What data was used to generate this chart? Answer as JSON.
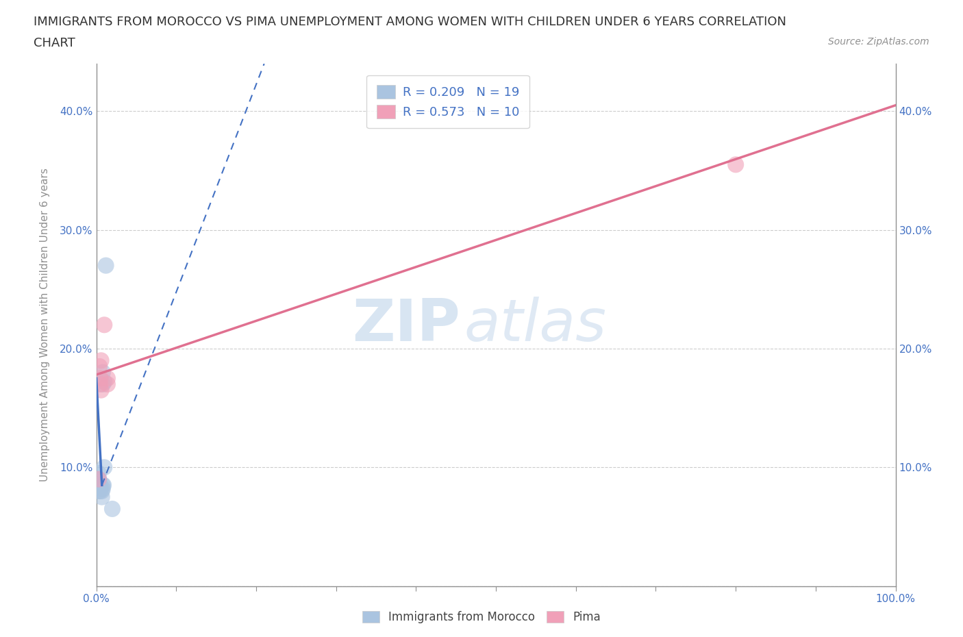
{
  "title_line1": "IMMIGRANTS FROM MOROCCO VS PIMA UNEMPLOYMENT AMONG WOMEN WITH CHILDREN UNDER 6 YEARS CORRELATION",
  "title_line2": "CHART",
  "source": "Source: ZipAtlas.com",
  "ylabel": "Unemployment Among Women with Children Under 6 years",
  "xlim": [
    0,
    1.0
  ],
  "ylim": [
    0,
    0.44
  ],
  "xticks": [
    0.0,
    0.1,
    0.2,
    0.3,
    0.4,
    0.5,
    0.6,
    0.7,
    0.8,
    0.9,
    1.0
  ],
  "yticks": [
    0.0,
    0.1,
    0.2,
    0.3,
    0.4
  ],
  "xtick_labels": [
    "0.0%",
    "",
    "",
    "",
    "",
    "",
    "",
    "",
    "",
    "",
    "100.0%"
  ],
  "ytick_labels": [
    "",
    "10.0%",
    "20.0%",
    "30.0%",
    "40.0%"
  ],
  "blue_scatter_x": [
    0.003,
    0.003,
    0.003,
    0.003,
    0.003,
    0.003,
    0.005,
    0.005,
    0.007,
    0.007,
    0.008,
    0.008,
    0.008,
    0.008,
    0.009,
    0.01,
    0.01,
    0.012,
    0.02
  ],
  "blue_scatter_y": [
    0.08,
    0.085,
    0.085,
    0.09,
    0.09,
    0.095,
    0.08,
    0.085,
    0.075,
    0.08,
    0.082,
    0.085,
    0.17,
    0.18,
    0.085,
    0.1,
    0.172,
    0.27,
    0.065
  ],
  "pink_scatter_x": [
    0.003,
    0.004,
    0.005,
    0.005,
    0.006,
    0.006,
    0.01,
    0.014,
    0.014,
    0.8
  ],
  "pink_scatter_y": [
    0.09,
    0.185,
    0.17,
    0.175,
    0.165,
    0.19,
    0.22,
    0.17,
    0.175,
    0.355
  ],
  "blue_solid_line_x": [
    0.0,
    0.007
  ],
  "blue_solid_line_y": [
    0.175,
    0.085
  ],
  "blue_dashed_line_x": [
    0.007,
    0.21
  ],
  "blue_dashed_line_y": [
    0.085,
    0.44
  ],
  "pink_line_x": [
    0.0,
    1.0
  ],
  "pink_line_y": [
    0.178,
    0.405
  ],
  "blue_color": "#aac4e0",
  "pink_color": "#f0a0b8",
  "blue_line_color": "#4472c4",
  "pink_line_color": "#e07090",
  "legend_r1": "R = 0.209",
  "legend_n1": "N = 19",
  "legend_r2": "R = 0.573",
  "legend_n2": "N = 10",
  "legend_label1": "Immigrants from Morocco",
  "legend_label2": "Pima",
  "watermark_zip": "ZIP",
  "watermark_atlas": "atlas",
  "background_color": "#ffffff",
  "title_color": "#333333",
  "axis_color": "#909090",
  "grid_color": "#cccccc",
  "tick_label_color": "#4472c4",
  "title_fontsize": 13,
  "source_fontsize": 10,
  "ylabel_fontsize": 11,
  "legend_fontsize": 13
}
